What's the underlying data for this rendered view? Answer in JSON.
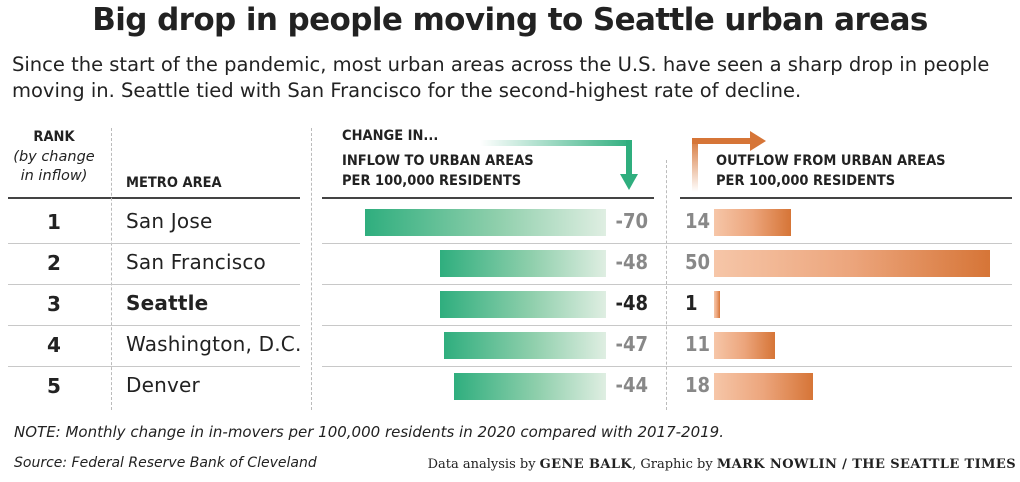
{
  "title": "Big drop in people moving to Seattle urban areas",
  "subtitle": "Since the start of the pandemic, most urban areas across the U.S. have seen a sharp drop in people moving in. Seattle tied with San Francisco for the second-highest rate of decline.",
  "headers": {
    "rank": "RANK",
    "rank_note_line1": "(by change",
    "rank_note_line2": "in inflow)",
    "metro": "METRO AREA",
    "change": "CHANGE IN...",
    "inflow_line1": "INFLOW TO URBAN AREAS",
    "inflow_line2": "PER 100,000 RESIDENTS",
    "outflow_line1": "OUTFLOW FROM URBAN AREAS",
    "outflow_line2": "PER 100,000 RESIDENTS"
  },
  "colors": {
    "inflow": "#2fae7e",
    "outflow": "#d67537",
    "highlight": "#222222",
    "muted": "#888888"
  },
  "chart_data": {
    "type": "bar",
    "categories": [
      "San Jose",
      "San Francisco",
      "Seattle",
      "Washington, D.C.",
      "Denver"
    ],
    "ranks": [
      "1",
      "2",
      "3",
      "4",
      "5"
    ],
    "highlight": "Seattle",
    "series": [
      {
        "name": "INFLOW TO URBAN AREAS PER 100,000 RESIDENTS",
        "values": [
          -70,
          -48,
          -48,
          -47,
          -44
        ],
        "labels": [
          "-70",
          "-48",
          "-48",
          "-47",
          "-44"
        ]
      },
      {
        "name": "OUTFLOW FROM URBAN AREAS PER 100,000 RESIDENTS",
        "values": [
          14,
          50,
          1,
          11,
          18
        ],
        "labels": [
          "14",
          "50",
          "1",
          "11",
          "18"
        ]
      }
    ]
  },
  "note": "NOTE: Monthly change in in-movers per 100,000 residents in 2020 compared with 2017-2019.",
  "source": "Source: Federal Reserve Bank of Cleveland",
  "credit": {
    "prefix": "Data analysis by ",
    "analyst": "GENE BALK",
    "middle": ", Graphic by ",
    "designer": "MARK NOWLIN / THE SEATTLE TIMES"
  }
}
